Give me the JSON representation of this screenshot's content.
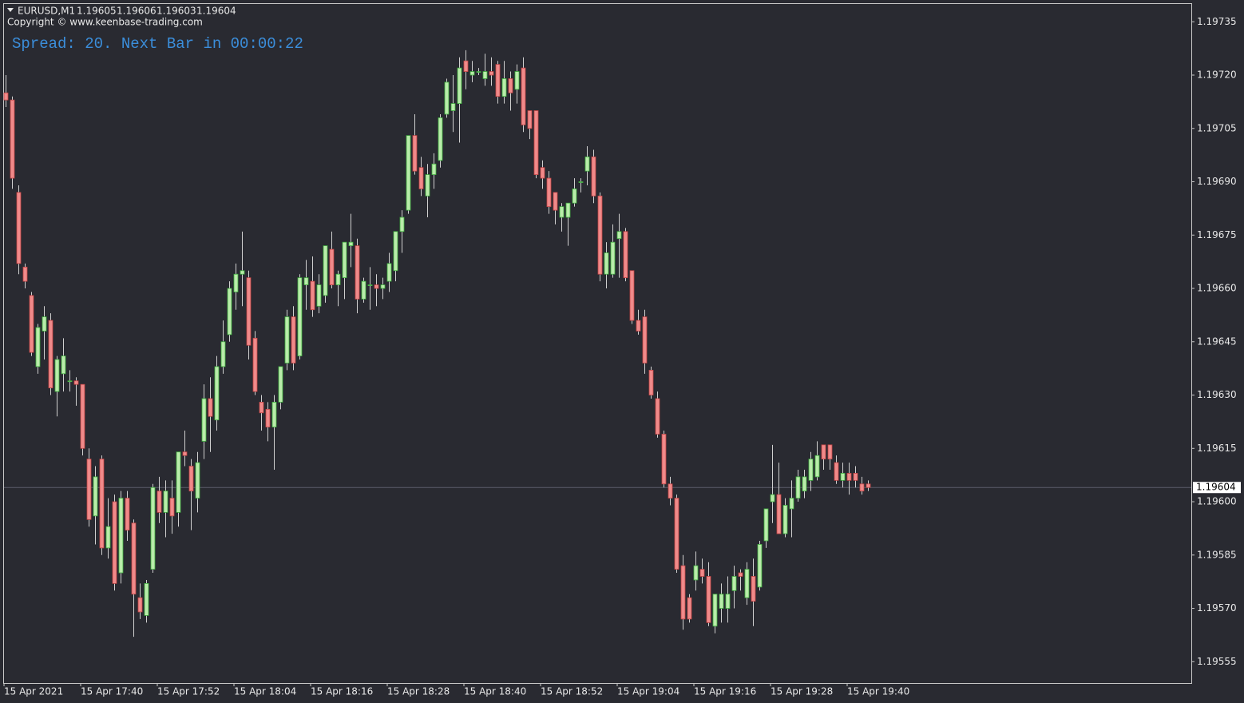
{
  "chart_data": {
    "type": "candlestick",
    "title": "EURUSD,M1",
    "quote": [
      1.19605,
      1.19606,
      1.19603,
      1.19604
    ],
    "subtitle": "Copyright © www.keenbase-trading.com",
    "annotation": "Spread: 20. Next Bar in 00:00:22",
    "current_price": 1.19604,
    "up_color": "#b9ecaa",
    "down_color": "#f08a8a",
    "ylim": [
      1.19549,
      1.1974
    ],
    "yticks": [
      1.19555,
      {
        "value": 1.1957,
        "label": "1.19570"
      },
      1.19585,
      {
        "value": 1.196,
        "label": "1.19600"
      },
      1.19615,
      {
        "value": 1.1963,
        "label": "1.19630"
      },
      1.19645,
      {
        "value": 1.1966,
        "label": "1.19660"
      },
      1.19675,
      {
        "value": 1.1969,
        "label": "1.19690"
      },
      1.19705,
      {
        "value": 1.1972,
        "label": "1.19720"
      },
      1.19735
    ],
    "categories": [
      "15 Apr 2021",
      null,
      null,
      null,
      null,
      null,
      null,
      null,
      null,
      null,
      null,
      null,
      "15 Apr 17:40",
      null,
      null,
      null,
      null,
      null,
      null,
      null,
      null,
      null,
      null,
      null,
      "15 Apr 17:52",
      null,
      null,
      null,
      null,
      null,
      null,
      null,
      null,
      null,
      null,
      null,
      "15 Apr 18:04",
      null,
      null,
      null,
      null,
      null,
      null,
      null,
      null,
      null,
      null,
      null,
      "15 Apr 18:16",
      null,
      null,
      null,
      null,
      null,
      null,
      null,
      null,
      null,
      null,
      null,
      "15 Apr 18:28",
      null,
      null,
      null,
      null,
      null,
      null,
      null,
      null,
      null,
      null,
      null,
      "15 Apr 18:40",
      null,
      null,
      null,
      null,
      null,
      null,
      null,
      null,
      null,
      null,
      null,
      "15 Apr 18:52",
      null,
      null,
      null,
      null,
      null,
      null,
      null,
      null,
      null,
      null,
      null,
      "15 Apr 19:04",
      null,
      null,
      null,
      null,
      null,
      null,
      null,
      null,
      null,
      null,
      null,
      "15 Apr 19:16",
      null,
      null,
      null,
      null,
      null,
      null,
      null,
      null,
      null,
      null,
      null,
      "15 Apr 19:28",
      null,
      null,
      null,
      null,
      null,
      null,
      null,
      null,
      null,
      null,
      null,
      "15 Apr 19:40",
      null,
      null,
      null
    ],
    "open": [
      1.19715,
      1.19713,
      1.19687,
      1.19666,
      1.19658,
      1.19638,
      1.19648,
      1.19651,
      1.19631,
      1.19636,
      1.19634,
      1.19634,
      1.19633,
      1.19612,
      1.19596,
      1.19612,
      1.19587,
      1.196,
      1.1958,
      1.19601,
      1.19594,
      1.19573,
      1.19568,
      1.19581,
      1.19603,
      1.19597,
      1.19601,
      1.19597,
      1.19614,
      1.1961,
      1.19601,
      1.19617,
      1.19629,
      1.19623,
      1.19638,
      1.19647,
      1.19659,
      1.19664,
      1.19663,
      1.19646,
      1.19628,
      1.19626,
      1.19621,
      1.19628,
      1.19639,
      1.19652,
      1.19641,
      1.19661,
      1.19662,
      1.19655,
      1.19658,
      1.19671,
      1.19661,
      1.19663,
      1.19672,
      1.19672,
      1.19657,
      1.19661,
      1.19661,
      1.1966,
      1.19662,
      1.19665,
      1.19676,
      1.19682,
      1.19703,
      1.19694,
      1.19686,
      1.19692,
      1.19696,
      1.19709,
      1.1971,
      1.19712,
      1.19724,
      1.1972,
      1.19721,
      1.19719,
      1.19721,
      1.19723,
      1.19714,
      1.19719,
      1.19716,
      1.19722,
      1.1971,
      1.1971,
      1.19694,
      1.19691,
      1.19687,
      1.1968,
      1.1968,
      1.19684,
      1.1969,
      1.19693,
      1.19697,
      1.19686,
      1.19664,
      1.19664,
      1.19674,
      1.19676,
      1.19665,
      1.19651,
      1.19652,
      1.19637,
      1.19629,
      1.19619,
      1.19605,
      1.19601,
      1.19582,
      1.19573,
      1.19578,
      1.19581,
      1.19579,
      1.19565,
      1.1957,
      1.1957,
      1.19575,
      1.1958,
      1.19573,
      1.19579,
      1.19576,
      1.19589,
      1.196,
      1.19602,
      1.19591,
      1.19598,
      1.19601,
      1.19603,
      1.19606,
      1.19607,
      1.19616,
      1.19616,
      1.19611,
      1.19606,
      1.19608,
      1.19608,
      1.19605,
      1.19605
    ],
    "high": [
      1.1972,
      1.19714,
      1.19689,
      1.19667,
      1.19659,
      1.1965,
      1.19655,
      1.19653,
      1.19641,
      1.19646,
      1.19637,
      1.19635,
      1.19633,
      1.19615,
      1.1961,
      1.19613,
      1.19601,
      1.19602,
      1.19603,
      1.19603,
      1.19595,
      1.19577,
      1.19578,
      1.19605,
      1.19607,
      1.19606,
      1.19606,
      1.19614,
      1.1962,
      1.19612,
      1.19614,
      1.19633,
      1.19635,
      1.19641,
      1.19651,
      1.19662,
      1.19667,
      1.19676,
      1.19665,
      1.19648,
      1.1963,
      1.19628,
      1.1963,
      1.19638,
      1.19654,
      1.19655,
      1.19664,
      1.19668,
      1.19669,
      1.19664,
      1.19672,
      1.19676,
      1.19665,
      1.19673,
      1.19681,
      1.19674,
      1.19663,
      1.19666,
      1.19664,
      1.19663,
      1.1967,
      1.19676,
      1.19682,
      1.19703,
      1.19709,
      1.19697,
      1.19695,
      1.19698,
      1.19709,
      1.19719,
      1.1972,
      1.19725,
      1.19727,
      1.19724,
      1.19722,
      1.19726,
      1.19725,
      1.19724,
      1.19724,
      1.19721,
      1.19723,
      1.19725,
      1.1971,
      1.1971,
      1.19696,
      1.19693,
      1.19687,
      1.19684,
      1.19684,
      1.19691,
      1.19691,
      1.197,
      1.19699,
      1.19687,
      1.19673,
      1.19678,
      1.19681,
      1.19677,
      1.19665,
      1.19654,
      1.19654,
      1.19638,
      1.19631,
      1.1962,
      1.19607,
      1.19602,
      1.19585,
      1.19574,
      1.19586,
      1.19584,
      1.19583,
      1.19574,
      1.19577,
      1.19579,
      1.19582,
      1.19581,
      1.19583,
      1.19584,
      1.19589,
      1.19598,
      1.19616,
      1.19611,
      1.19601,
      1.19606,
      1.19609,
      1.19609,
      1.19614,
      1.19617,
      1.19616,
      1.19616,
      1.19613,
      1.19611,
      1.19611,
      1.1961,
      1.19607,
      1.19606
    ],
    "low": [
      1.19711,
      1.19688,
      1.19664,
      1.1966,
      1.19641,
      1.19636,
      1.1964,
      1.1963,
      1.19624,
      1.19631,
      1.19631,
      1.19627,
      1.19613,
      1.19593,
      1.19588,
      1.19585,
      1.19584,
      1.19575,
      1.19577,
      1.19589,
      1.19562,
      1.19567,
      1.19566,
      1.1958,
      1.19594,
      1.1959,
      1.19591,
      1.19593,
      1.1961,
      1.19592,
      1.19597,
      1.19612,
      1.19614,
      1.1962,
      1.19636,
      1.19645,
      1.19654,
      1.19655,
      1.1964,
      1.1963,
      1.1962,
      1.19617,
      1.19609,
      1.19626,
      1.19637,
      1.19637,
      1.1964,
      1.19654,
      1.19652,
      1.19653,
      1.19656,
      1.1966,
      1.19655,
      1.19657,
      1.19666,
      1.19653,
      1.19656,
      1.19654,
      1.19655,
      1.19657,
      1.19659,
      1.19662,
      1.1967,
      1.19681,
      1.19692,
      1.19686,
      1.1968,
      1.19688,
      1.19694,
      1.19708,
      1.19704,
      1.19701,
      1.19716,
      1.19718,
      1.1972,
      1.19717,
      1.19717,
      1.19712,
      1.19712,
      1.1971,
      1.19712,
      1.19704,
      1.19702,
      1.19691,
      1.19688,
      1.19681,
      1.19678,
      1.19676,
      1.19672,
      1.19683,
      1.19687,
      1.19689,
      1.19684,
      1.19662,
      1.1966,
      1.19663,
      1.19663,
      1.19662,
      1.1965,
      1.19647,
      1.19636,
      1.19629,
      1.19618,
      1.19604,
      1.19599,
      1.1958,
      1.19564,
      1.19566,
      1.19575,
      1.19577,
      1.19565,
      1.19563,
      1.19566,
      1.19566,
      1.1957,
      1.19575,
      1.19571,
      1.19565,
      1.19575,
      1.19587,
      1.19594,
      1.19591,
      1.1959,
      1.1959,
      1.196,
      1.19601,
      1.19603,
      1.19606,
      1.19609,
      1.19609,
      1.19605,
      1.19604,
      1.19602,
      1.19604,
      1.19602,
      1.19603
    ],
    "close": [
      1.19713,
      1.19691,
      1.19667,
      1.19662,
      1.19642,
      1.19649,
      1.19652,
      1.19632,
      1.1964,
      1.19641,
      1.19634,
      1.19633,
      1.19615,
      1.19595,
      1.19607,
      1.19587,
      1.19593,
      1.19577,
      1.19601,
      1.19592,
      1.19574,
      1.19569,
      1.19577,
      1.19604,
      1.19597,
      1.19603,
      1.19596,
      1.19614,
      1.19613,
      1.19603,
      1.19611,
      1.19629,
      1.19624,
      1.19638,
      1.19645,
      1.1966,
      1.19664,
      1.19665,
      1.19644,
      1.19631,
      1.19625,
      1.19621,
      1.19628,
      1.19638,
      1.19652,
      1.19639,
      1.19663,
      1.19663,
      1.19654,
      1.19661,
      1.19672,
      1.19661,
      1.19664,
      1.19673,
      1.19673,
      1.19657,
      1.19662,
      1.19661,
      1.1966,
      1.19661,
      1.19667,
      1.19676,
      1.1968,
      1.19703,
      1.19693,
      1.19688,
      1.19692,
      1.19695,
      1.19708,
      1.19718,
      1.19712,
      1.19722,
      1.19721,
      1.19721,
      1.19721,
      1.19721,
      1.1972,
      1.19714,
      1.19719,
      1.19715,
      1.19721,
      1.19706,
      1.19705,
      1.19692,
      1.19691,
      1.19683,
      1.19682,
      1.19683,
      1.19684,
      1.19688,
      1.1969,
      1.19697,
      1.19686,
      1.19664,
      1.1967,
      1.19673,
      1.19676,
      1.19663,
      1.19651,
      1.19648,
      1.19639,
      1.1963,
      1.19619,
      1.19605,
      1.19601,
      1.19581,
      1.19567,
      1.19567,
      1.19582,
      1.19579,
      1.19566,
      1.19574,
      1.19574,
      1.19574,
      1.19579,
      1.19579,
      1.19581,
      1.19572,
      1.19588,
      1.19598,
      1.19602,
      1.19591,
      1.19599,
      1.19601,
      1.19607,
      1.19607,
      1.19612,
      1.19613,
      1.19612,
      1.19612,
      1.19606,
      1.19608,
      1.19606,
      1.19606,
      1.19603,
      1.19604
    ]
  }
}
